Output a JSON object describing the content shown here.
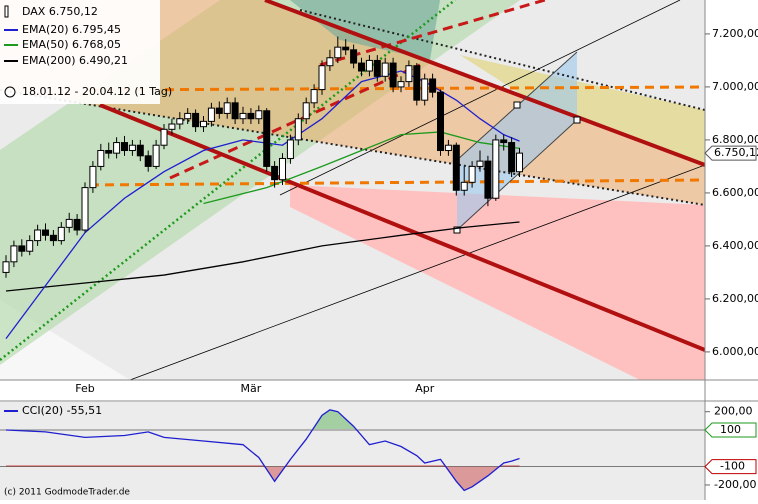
{
  "chart_data": [
    {
      "type": "candlestick",
      "date_range": "18.01.12 - 20.04.12 (1 Tag)",
      "copyright": "(c) 2011 GodmodeTrader.de",
      "categories": [
        null,
        null,
        null,
        null,
        null,
        null,
        null,
        null,
        null,
        null,
        "Feb",
        null,
        null,
        null,
        null,
        null,
        null,
        null,
        null,
        null,
        null,
        null,
        null,
        null,
        null,
        null,
        null,
        null,
        null,
        null,
        null,
        "Mär",
        null,
        null,
        null,
        null,
        null,
        null,
        null,
        null,
        null,
        null,
        null,
        null,
        null,
        null,
        null,
        null,
        null,
        null,
        null,
        null,
        null,
        "Apr",
        null,
        null,
        null,
        null,
        null,
        null,
        null,
        null,
        null,
        null,
        null,
        null
      ],
      "xlim": [
        -0.76,
        88.48
      ],
      "ylim": [
        5894,
        7328
      ],
      "yticks": [
        {
          "value": 6000,
          "label": "6.000,00"
        },
        {
          "value": 6200,
          "label": "6.200,00"
        },
        {
          "value": 6400,
          "label": "6.400,00"
        },
        {
          "value": 6600,
          "label": "6.600,00"
        },
        {
          "value": 6800,
          "label": "6.800,00"
        },
        {
          "value": 7000,
          "label": "7.000,00"
        },
        {
          "value": 7200,
          "label": "7.200,00"
        }
      ],
      "price_marker": {
        "value": 6750.12,
        "label": "6.750,12"
      },
      "series": [
        {
          "name": "DAX 6.750,12",
          "color": "#000000",
          "open": [
            6300,
            6340,
            6400,
            6380,
            6420,
            6460,
            6440,
            6420,
            6470,
            6500,
            6460,
            6620,
            6700,
            6760,
            6750,
            6790,
            6760,
            6780,
            6740,
            6700,
            6780,
            6840,
            6860,
            6880,
            6900,
            6850,
            6870,
            6920,
            6900,
            6940,
            6880,
            6900,
            6880,
            6910,
            6700,
            6650,
            6730,
            6800,
            6880,
            6940,
            6990,
            7080,
            7110,
            7150,
            7140,
            7090,
            7060,
            7100,
            7040,
            7090,
            7000,
            7020,
            7080,
            6950,
            7030,
            6980,
            6760,
            6780,
            6610,
            6640,
            6700,
            6720,
            6580,
            6800,
            6790,
            6680
          ],
          "high": [
            6365,
            6420,
            6425,
            6440,
            6480,
            6485,
            6460,
            6490,
            6525,
            6520,
            6640,
            6720,
            6785,
            6790,
            6810,
            6815,
            6800,
            6800,
            6760,
            6800,
            6860,
            6880,
            6905,
            6920,
            6915,
            6890,
            6940,
            6945,
            6960,
            6960,
            6925,
            6920,
            6930,
            6920,
            6720,
            6750,
            6820,
            6900,
            6960,
            7010,
            7100,
            7140,
            7190,
            7180,
            7160,
            7110,
            7120,
            7120,
            7110,
            7110,
            7040,
            7100,
            7090,
            7050,
            7050,
            6990,
            6800,
            6790,
            6700,
            6720,
            6760,
            6740,
            6820,
            6820,
            6810,
            6770
          ],
          "low": [
            6280,
            6320,
            6360,
            6365,
            6400,
            6420,
            6400,
            6405,
            6450,
            6440,
            6450,
            6600,
            6685,
            6730,
            6730,
            6740,
            6740,
            6720,
            6680,
            6690,
            6765,
            6820,
            6840,
            6860,
            6830,
            6830,
            6850,
            6880,
            6880,
            6860,
            6860,
            6860,
            6860,
            6680,
            6620,
            6630,
            6710,
            6780,
            6860,
            6920,
            6970,
            7060,
            7090,
            7120,
            7070,
            7040,
            7040,
            7020,
            7020,
            6980,
            6980,
            7000,
            6930,
            6930,
            6960,
            6740,
            6740,
            6590,
            6590,
            6620,
            6680,
            6550,
            6570,
            6760,
            6660,
            6660
          ],
          "close": [
            6340,
            6400,
            6380,
            6420,
            6460,
            6440,
            6420,
            6470,
            6500,
            6460,
            6620,
            6700,
            6760,
            6750,
            6790,
            6760,
            6780,
            6740,
            6700,
            6780,
            6840,
            6860,
            6880,
            6900,
            6850,
            6870,
            6920,
            6900,
            6940,
            6880,
            6900,
            6880,
            6910,
            6700,
            6650,
            6730,
            6800,
            6880,
            6940,
            6990,
            7080,
            7110,
            7150,
            7140,
            7090,
            7060,
            7100,
            7040,
            7090,
            7000,
            7020,
            7080,
            6950,
            7030,
            6980,
            6760,
            6780,
            6610,
            6640,
            6700,
            6720,
            6580,
            6800,
            6790,
            6680,
            6750.12
          ]
        },
        {
          "name": "EMA(20) 6.795,45",
          "color": "#1f1fd0",
          "x": [
            0,
            5,
            10,
            15,
            20,
            25,
            30,
            35,
            40,
            45,
            50,
            53,
            57,
            60,
            63,
            65
          ],
          "values": [
            6050,
            6250,
            6450,
            6580,
            6680,
            6760,
            6800,
            6780,
            6880,
            7020,
            7060,
            7020,
            6950,
            6880,
            6820,
            6795.45
          ]
        },
        {
          "name": "EMA(50) 6.768,05",
          "color": "#1c9a1c",
          "x": [
            25,
            33,
            40,
            45,
            50,
            55,
            60,
            65
          ],
          "values": [
            6560,
            6620,
            6700,
            6760,
            6820,
            6830,
            6790,
            6768.05
          ]
        },
        {
          "name": "EMA(200) 6.490,21",
          "color": "#000000",
          "x": [
            0,
            10,
            20,
            30,
            40,
            50,
            58,
            65
          ],
          "values": [
            6230,
            6260,
            6290,
            6340,
            6400,
            6440,
            6470,
            6490.21
          ]
        }
      ]
    },
    {
      "type": "line",
      "ylim": [
        -282,
        253
      ],
      "yticks": [
        {
          "value": 200,
          "label": "200,00"
        },
        {
          "value": -100,
          "label": "-100,00"
        },
        {
          "value": -200,
          "label": "-200,00"
        }
      ],
      "levels": [
        {
          "value": 100,
          "label": "100",
          "color": "#1c9a1c"
        },
        {
          "value": -100,
          "label": "-100",
          "color": "#c00000"
        }
      ],
      "series": [
        {
          "name": "CCI(20) -55,51",
          "color": "#1f1fd0",
          "x": [
            0,
            5,
            10,
            15,
            18,
            20,
            25,
            30,
            32,
            34,
            36,
            38,
            40,
            41,
            42,
            44,
            46,
            48,
            50,
            52,
            53,
            55,
            57,
            58,
            59,
            61,
            63,
            64,
            65
          ],
          "values": [
            100,
            90,
            60,
            70,
            90,
            60,
            40,
            20,
            -50,
            -180,
            -60,
            50,
            180,
            210,
            200,
            120,
            20,
            40,
            10,
            -40,
            -80,
            -60,
            -180,
            -230,
            -210,
            -150,
            -80,
            -70,
            -55.51
          ]
        }
      ]
    }
  ]
}
